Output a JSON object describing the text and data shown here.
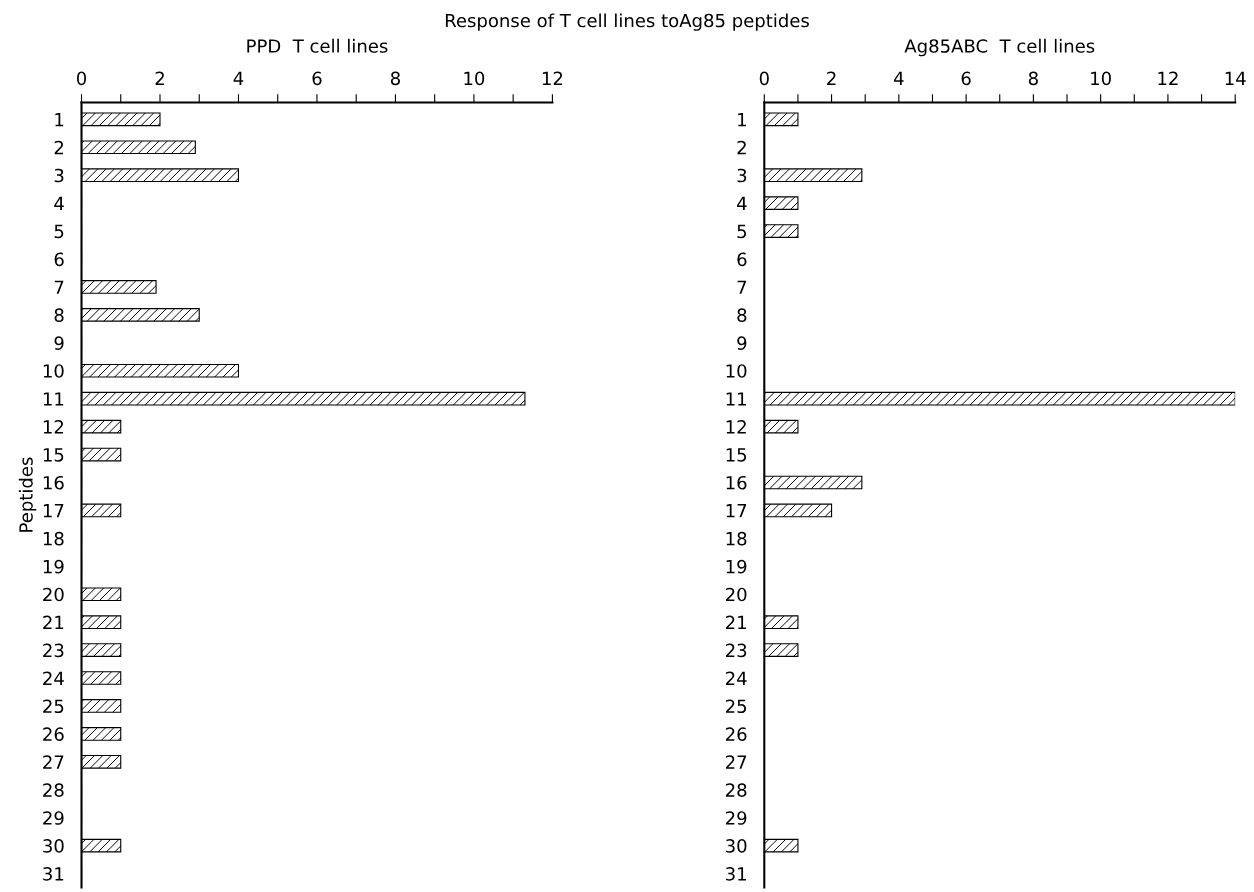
{
  "chart_data": [
    {
      "type": "bar",
      "orientation": "horizontal",
      "title": "PPD  T cell lines",
      "ylabel": "Peptides",
      "annotations": [
        "Response of T cell lines toAg85 peptides"
      ],
      "categories": [
        "1",
        "2",
        "3",
        "4",
        "5",
        "6",
        "7",
        "8",
        "9",
        "10",
        "11",
        "12",
        "15",
        "16",
        "17",
        "18",
        "19",
        "20",
        "21",
        "23",
        "24",
        "25",
        "26",
        "27",
        "28",
        "29",
        "30",
        "31"
      ],
      "values": [
        2,
        2.9,
        4,
        0,
        0,
        0,
        1.9,
        3,
        0,
        4,
        11.3,
        1,
        1,
        0,
        1,
        0,
        0,
        1,
        1,
        1,
        1,
        1,
        1,
        1,
        0,
        0,
        1,
        0
      ],
      "color": "#000000",
      "xlim": [
        0,
        12
      ],
      "xticks": [
        0,
        {
          "value": 1,
          "label": null
        },
        2,
        {
          "value": 3,
          "label": null
        },
        4,
        {
          "value": 5,
          "label": null
        },
        6,
        {
          "value": 7,
          "label": null
        },
        8,
        {
          "value": 9,
          "label": null
        },
        10,
        {
          "value": 11,
          "label": null
        },
        12
      ],
      "grid": false,
      "legend": false
    },
    {
      "type": "bar",
      "orientation": "horizontal",
      "title": "Ag85ABC  T cell lines",
      "categories": [
        "1",
        "2",
        "3",
        "4",
        "5",
        "6",
        "7",
        "8",
        "9",
        "10",
        "11",
        "12",
        "15",
        "16",
        "17",
        "18",
        "19",
        "20",
        "21",
        "23",
        "24",
        "25",
        "26",
        "27",
        "28",
        "29",
        "30",
        "31"
      ],
      "values": [
        1,
        0,
        2.9,
        1,
        1,
        0,
        0,
        0,
        0,
        0,
        14,
        1,
        0,
        2.9,
        2,
        0,
        0,
        0,
        1,
        1,
        0,
        0,
        0,
        0,
        0,
        0,
        1,
        0
      ],
      "color": "#000000",
      "xlim": [
        0,
        14
      ],
      "xticks": [
        0,
        {
          "value": 1,
          "label": null
        },
        2,
        {
          "value": 3,
          "label": null
        },
        4,
        {
          "value": 5,
          "label": null
        },
        6,
        {
          "value": 7,
          "label": null
        },
        8,
        {
          "value": 9,
          "label": null
        },
        10,
        {
          "value": 11,
          "label": null
        },
        12,
        {
          "value": 13,
          "label": null
        },
        14
      ],
      "grid": false,
      "legend": false
    }
  ]
}
